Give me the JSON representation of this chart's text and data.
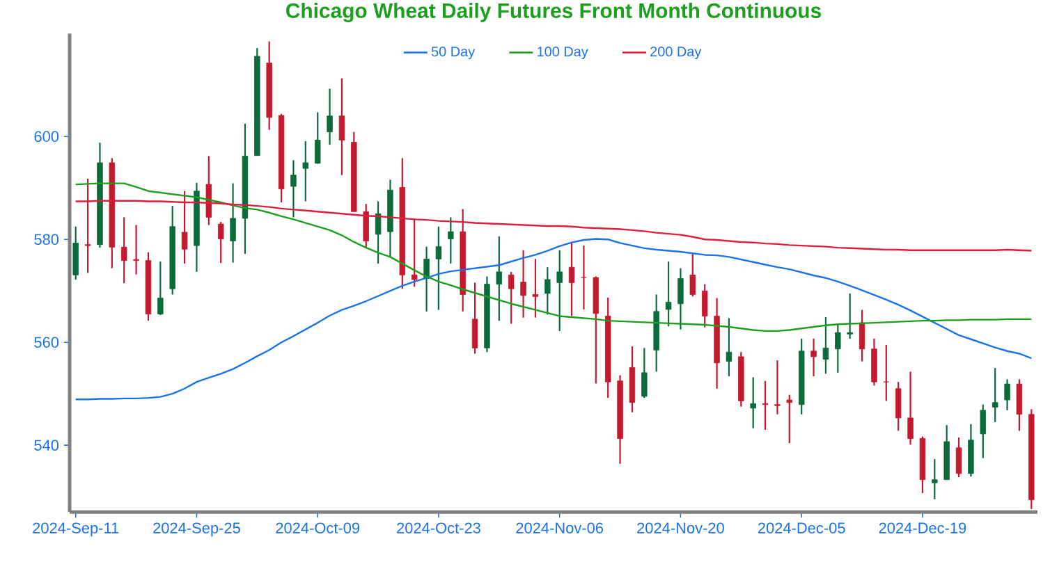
{
  "chart_data": {
    "type": "candlestick",
    "title": "Chicago Wheat Daily Futures Front Month Continuous",
    "categories": [
      "2024-Sep-11",
      null,
      null,
      null,
      null,
      null,
      null,
      null,
      null,
      null,
      "2024-Sep-25",
      null,
      null,
      null,
      null,
      null,
      null,
      null,
      null,
      null,
      "2024-Oct-09",
      null,
      null,
      null,
      null,
      null,
      null,
      null,
      null,
      null,
      "2024-Oct-23",
      null,
      null,
      null,
      null,
      null,
      null,
      null,
      null,
      null,
      "2024-Nov-06",
      null,
      null,
      null,
      null,
      null,
      null,
      null,
      null,
      null,
      "2024-Nov-20",
      null,
      null,
      null,
      null,
      null,
      null,
      null,
      null,
      null,
      "2024-Dec-05",
      null,
      null,
      null,
      null,
      null,
      null,
      null,
      null,
      null,
      "2024-Dec-19",
      null,
      null,
      null,
      null,
      null,
      null,
      null,
      null,
      null
    ],
    "ohlc": [
      [
        573.1,
        582.5,
        572.2,
        579.3
      ],
      [
        579.0,
        591.8,
        573.5,
        578.8
      ],
      [
        579.0,
        598.8,
        578.4,
        594.9
      ],
      [
        594.9,
        595.8,
        574.4,
        578.5
      ],
      [
        578.5,
        584.3,
        571.5,
        575.9
      ],
      [
        576.1,
        582.8,
        573.2,
        575.9
      ],
      [
        575.9,
        577.5,
        564.2,
        565.5
      ],
      [
        565.5,
        575.7,
        565.3,
        568.6
      ],
      [
        570.4,
        586.5,
        569.3,
        582.5
      ],
      [
        581.4,
        589.4,
        575.3,
        578.1
      ],
      [
        578.8,
        591.0,
        573.7,
        589.4
      ],
      [
        590.7,
        596.2,
        582.8,
        584.3
      ],
      [
        583.0,
        583.4,
        575.4,
        580.1
      ],
      [
        579.7,
        590.9,
        575.5,
        584.1
      ],
      [
        584.1,
        602.5,
        577.2,
        596.2
      ],
      [
        596.3,
        617.2,
        596.3,
        615.6
      ],
      [
        614.3,
        618.5,
        601.3,
        603.7
      ],
      [
        604.1,
        604.4,
        587.2,
        589.8
      ],
      [
        590.3,
        595.4,
        584.3,
        592.5
      ],
      [
        593.8,
        599.1,
        587.4,
        594.9
      ],
      [
        594.8,
        604.7,
        594.7,
        599.3
      ],
      [
        600.9,
        609.3,
        598.4,
        604.0
      ],
      [
        604.0,
        611.3,
        592.5,
        599.3
      ],
      [
        598.9,
        600.9,
        585.4,
        585.4
      ],
      [
        585.4,
        586.9,
        578.4,
        579.7
      ],
      [
        581.0,
        587.4,
        575.3,
        585.0
      ],
      [
        581.5,
        591.6,
        576.6,
        589.6
      ],
      [
        590.1,
        595.8,
        570.4,
        573.1
      ],
      [
        573.1,
        584.1,
        570.8,
        572.2
      ],
      [
        572.4,
        578.6,
        566.0,
        576.2
      ],
      [
        576.2,
        582.5,
        566.3,
        578.6
      ],
      [
        580.1,
        584.3,
        575.3,
        581.5
      ],
      [
        581.5,
        585.9,
        566.0,
        569.3
      ],
      [
        564.5,
        571.6,
        557.8,
        558.9
      ],
      [
        558.9,
        572.8,
        558.1,
        571.3
      ],
      [
        571.3,
        580.6,
        564.2,
        573.7
      ],
      [
        573.1,
        573.7,
        563.6,
        570.4
      ],
      [
        571.7,
        577.9,
        564.8,
        569.1
      ],
      [
        569.3,
        576.2,
        564.8,
        568.9
      ],
      [
        569.5,
        574.6,
        565.4,
        572.2
      ],
      [
        571.6,
        577.9,
        562.2,
        573.7
      ],
      [
        574.6,
        579.4,
        565.1,
        571.6
      ],
      [
        572.6,
        578.8,
        566.4,
        572.6
      ],
      [
        572.6,
        572.8,
        552.0,
        565.6
      ],
      [
        565.1,
        568.7,
        549.2,
        552.3
      ],
      [
        552.5,
        553.6,
        536.4,
        541.3
      ],
      [
        555.1,
        559.2,
        546.4,
        548.3
      ],
      [
        549.5,
        558.9,
        549.2,
        554.1
      ],
      [
        558.5,
        569.3,
        554.3,
        566.0
      ],
      [
        566.4,
        575.7,
        563.1,
        567.8
      ],
      [
        567.5,
        574.4,
        562.5,
        572.4
      ],
      [
        573.1,
        577.2,
        568.9,
        569.3
      ],
      [
        570.0,
        571.3,
        562.9,
        565.1
      ],
      [
        565.1,
        568.6,
        551.0,
        556.0
      ],
      [
        556.3,
        564.7,
        553.4,
        558.1
      ],
      [
        557.2,
        558.1,
        547.5,
        548.6
      ],
      [
        547.2,
        553.2,
        543.3,
        548.1
      ],
      [
        548.1,
        552.5,
        543.0,
        547.9
      ],
      [
        547.9,
        556.5,
        546.0,
        547.7
      ],
      [
        548.8,
        549.8,
        540.4,
        548.3
      ],
      [
        547.9,
        560.7,
        546.0,
        558.3
      ],
      [
        558.3,
        560.7,
        553.4,
        557.2
      ],
      [
        556.7,
        564.9,
        553.9,
        558.9
      ],
      [
        558.7,
        563.6,
        554.1,
        561.9
      ],
      [
        561.6,
        569.5,
        560.7,
        561.9
      ],
      [
        563.8,
        566.3,
        556.3,
        558.7
      ],
      [
        558.7,
        560.7,
        551.6,
        552.3
      ],
      [
        552.3,
        559.5,
        548.6,
        552.3
      ],
      [
        551.0,
        552.3,
        542.8,
        545.3
      ],
      [
        545.3,
        554.3,
        540.1,
        541.3
      ],
      [
        541.3,
        541.7,
        530.7,
        533.3
      ],
      [
        532.7,
        537.3,
        529.5,
        533.3
      ],
      [
        533.3,
        543.9,
        533.3,
        540.7
      ],
      [
        539.5,
        541.5,
        533.8,
        534.5
      ],
      [
        534.5,
        544.1,
        533.9,
        541.0
      ],
      [
        542.2,
        547.9,
        537.5,
        546.8
      ],
      [
        547.4,
        555.0,
        544.5,
        548.3
      ],
      [
        548.8,
        552.8,
        546.8,
        551.9
      ],
      [
        551.9,
        552.8,
        542.8,
        546.0
      ],
      [
        546.0,
        547.0,
        527.6,
        529.4
      ]
    ],
    "colors": [
      "#0b6b3a",
      "#c41a2e",
      "#0b6b3a",
      "#c41a2e",
      "#c41a2e",
      "#c41a2e",
      "#c41a2e",
      "#0b6b3a",
      "#0b6b3a",
      "#c41a2e",
      "#0b6b3a",
      "#c41a2e",
      "#c41a2e",
      "#0b6b3a",
      "#0b6b3a",
      "#0b6b3a",
      "#c41a2e",
      "#c41a2e",
      "#0b6b3a",
      "#0b6b3a",
      "#0b6b3a",
      "#0b6b3a",
      "#c41a2e",
      "#c41a2e",
      "#c41a2e",
      "#0b6b3a",
      "#0b6b3a",
      "#c41a2e",
      "#c41a2e",
      "#0b6b3a",
      "#0b6b3a",
      "#0b6b3a",
      "#c41a2e",
      "#c41a2e",
      "#0b6b3a",
      "#0b6b3a",
      "#c41a2e",
      "#c41a2e",
      "#c41a2e",
      "#0b6b3a",
      "#0b6b3a",
      "#c41a2e",
      "#c41a2e",
      "#c41a2e",
      "#c41a2e",
      "#c41a2e",
      "#c41a2e",
      "#0b6b3a",
      "#0b6b3a",
      "#0b6b3a",
      "#0b6b3a",
      "#c41a2e",
      "#c41a2e",
      "#c41a2e",
      "#0b6b3a",
      "#c41a2e",
      "#0b6b3a",
      "#c41a2e",
      "#c41a2e",
      "#c41a2e",
      "#0b6b3a",
      "#c41a2e",
      "#0b6b3a",
      "#0b6b3a",
      "#0b6b3a",
      "#c41a2e",
      "#c41a2e",
      "#c41a2e",
      "#c41a2e",
      "#c41a2e",
      "#c41a2e",
      "#0b6b3a",
      "#0b6b3a",
      "#c41a2e",
      "#0b6b3a",
      "#0b6b3a",
      "#0b6b3a",
      "#0b6b3a",
      "#c41a2e",
      "#c41a2e"
    ],
    "series": [
      {
        "name": "50 Day",
        "type": "line",
        "color": "#1a73e8",
        "values": [
          548.9,
          548.9,
          549.0,
          549.0,
          549.1,
          549.1,
          549.2,
          549.4,
          550.0,
          551.0,
          552.3,
          553.1,
          553.9,
          554.8,
          556.0,
          557.3,
          558.5,
          560.0,
          561.2,
          562.5,
          563.8,
          565.2,
          566.3,
          567.1,
          568.0,
          569.0,
          570.0,
          571.0,
          571.8,
          572.5,
          573.3,
          573.8,
          574.1,
          574.4,
          574.7,
          575.0,
          575.7,
          576.4,
          577.0,
          577.8,
          578.7,
          579.4,
          579.9,
          580.1,
          580.0,
          579.3,
          578.8,
          578.3,
          578.0,
          577.8,
          577.6,
          577.3,
          577.0,
          576.9,
          576.6,
          576.1,
          575.6,
          575.1,
          574.6,
          574.2,
          573.6,
          573.0,
          572.5,
          571.8,
          571.0,
          570.1,
          569.2,
          568.3,
          567.3,
          566.2,
          565.0,
          563.8,
          562.6,
          561.4,
          560.6,
          559.8,
          559.0,
          558.3,
          557.8,
          556.9
        ]
      },
      {
        "name": "100 Day",
        "type": "line",
        "color": "#1e9e1e",
        "values": [
          590.7,
          590.8,
          590.9,
          590.9,
          590.9,
          590.2,
          589.4,
          589.1,
          588.8,
          588.5,
          588.2,
          587.7,
          587.2,
          586.6,
          586.1,
          585.8,
          585.2,
          584.5,
          583.9,
          583.2,
          582.5,
          581.8,
          580.8,
          579.5,
          578.4,
          577.4,
          576.6,
          575.3,
          574.0,
          572.8,
          571.8,
          571.1,
          570.3,
          569.6,
          568.9,
          568.2,
          567.5,
          566.9,
          566.3,
          565.7,
          565.1,
          564.9,
          564.7,
          564.5,
          564.2,
          564.1,
          564.0,
          563.9,
          563.8,
          563.7,
          563.6,
          563.5,
          563.4,
          563.2,
          563.0,
          562.7,
          562.4,
          562.2,
          562.2,
          562.4,
          562.7,
          563.0,
          563.3,
          563.5,
          563.6,
          563.7,
          563.8,
          563.9,
          564.0,
          564.1,
          564.2,
          564.2,
          564.3,
          564.3,
          564.4,
          564.4,
          564.4,
          564.5,
          564.5,
          564.5
        ]
      },
      {
        "name": "200 Day",
        "type": "line",
        "color": "#dc1f3c",
        "values": [
          587.4,
          587.4,
          587.5,
          587.5,
          587.5,
          587.5,
          587.4,
          587.4,
          587.3,
          587.2,
          587.2,
          587.1,
          587.0,
          586.8,
          586.7,
          586.5,
          586.3,
          586.0,
          585.8,
          585.6,
          585.4,
          585.2,
          585.0,
          584.8,
          584.6,
          584.5,
          584.3,
          584.1,
          583.9,
          583.8,
          583.6,
          583.5,
          583.4,
          583.2,
          583.1,
          583.0,
          582.9,
          582.8,
          582.7,
          582.6,
          582.6,
          582.5,
          582.3,
          582.2,
          582.1,
          582.0,
          581.8,
          581.6,
          581.3,
          581.1,
          580.9,
          580.5,
          580.0,
          579.9,
          579.7,
          579.5,
          579.4,
          579.2,
          579.1,
          578.9,
          578.8,
          578.7,
          578.6,
          578.4,
          578.3,
          578.2,
          578.1,
          578.0,
          578.0,
          577.9,
          577.9,
          577.9,
          577.9,
          577.9,
          577.9,
          577.9,
          577.9,
          578.0,
          577.9,
          577.8
        ]
      }
    ],
    "ylim": [
      527,
      620
    ],
    "yticks": [
      540,
      560,
      580,
      600
    ],
    "legend": "top"
  }
}
